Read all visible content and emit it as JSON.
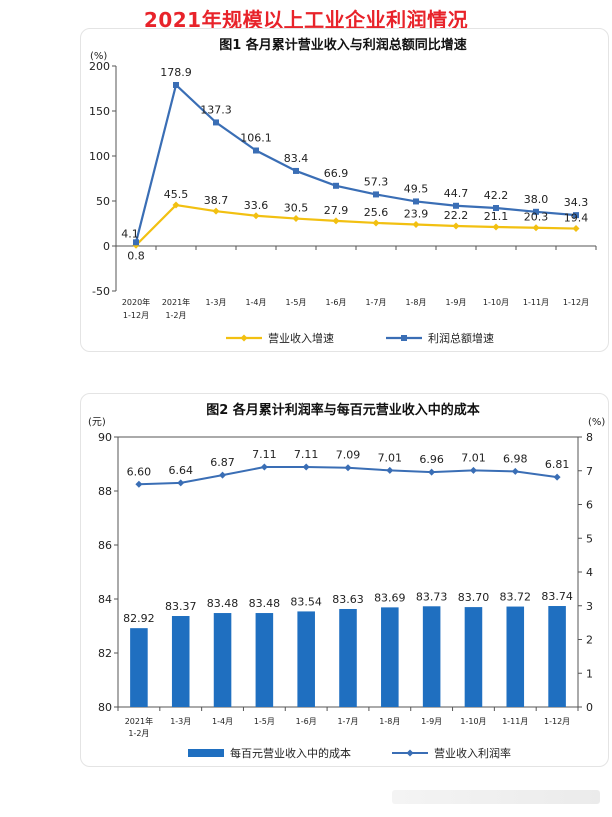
{
  "page": {
    "title": "2021年规模以上工业企业利润情况"
  },
  "chart_data": [
    {
      "type": "line",
      "title": "图1  各月累计营业收入与利润总额同比增速",
      "ylabel": "(%)",
      "ylim": [
        -50,
        200
      ],
      "yticks": [
        -50,
        0,
        50,
        100,
        150,
        200
      ],
      "grid": false,
      "legend_position": "bottom",
      "categories": [
        [
          "2020年",
          "1-12月"
        ],
        [
          "2021年",
          "1-2月"
        ],
        [
          "1-3月"
        ],
        [
          "1-4月"
        ],
        [
          "1-5月"
        ],
        [
          "1-6月"
        ],
        [
          "1-7月"
        ],
        [
          "1-8月"
        ],
        [
          "1-9月"
        ],
        [
          "1-10月"
        ],
        [
          "1-11月"
        ],
        [
          "1-12月"
        ]
      ],
      "series": [
        {
          "name": "营业收入增速",
          "color": "#f2c011",
          "marker": "diamond",
          "values": [
            0.8,
            45.5,
            38.7,
            33.6,
            30.5,
            27.9,
            25.6,
            23.9,
            22.2,
            21.1,
            20.3,
            19.4
          ]
        },
        {
          "name": "利润总额增速",
          "color": "#3a6eb5",
          "marker": "square",
          "values": [
            4.1,
            178.9,
            137.3,
            106.1,
            83.4,
            66.9,
            57.3,
            49.5,
            44.7,
            42.2,
            38.0,
            34.3
          ]
        }
      ]
    },
    {
      "type": "bar",
      "title": "图2  各月累计利润率与每百元营业收入中的成本",
      "ylabel": "(元)",
      "y2label": "(%)",
      "ylim": [
        80,
        90
      ],
      "yticks": [
        80,
        82,
        84,
        86,
        88,
        90
      ],
      "y2lim": [
        0,
        8
      ],
      "y2ticks": [
        0,
        1,
        2,
        3,
        4,
        5,
        6,
        7,
        8
      ],
      "grid": false,
      "legend_position": "bottom",
      "categories": [
        [
          "2021年",
          "1-2月"
        ],
        [
          "1-3月"
        ],
        [
          "1-4月"
        ],
        [
          "1-5月"
        ],
        [
          "1-6月"
        ],
        [
          "1-7月"
        ],
        [
          "1-8月"
        ],
        [
          "1-9月"
        ],
        [
          "1-10月"
        ],
        [
          "1-11月"
        ],
        [
          "1-12月"
        ]
      ],
      "series": [
        {
          "name": "每百元营业收入中的成本",
          "type": "bar",
          "axis": "left",
          "color": "#1f6fc0",
          "values": [
            82.92,
            83.37,
            83.48,
            83.48,
            83.54,
            83.63,
            83.69,
            83.73,
            83.7,
            83.72,
            83.74
          ]
        },
        {
          "name": "营业收入利润率",
          "type": "line",
          "axis": "right",
          "color": "#3a6eb5",
          "marker": "diamond",
          "values": [
            6.6,
            6.64,
            6.87,
            7.11,
            7.11,
            7.09,
            7.01,
            6.96,
            7.01,
            6.98,
            6.81
          ]
        }
      ]
    }
  ]
}
